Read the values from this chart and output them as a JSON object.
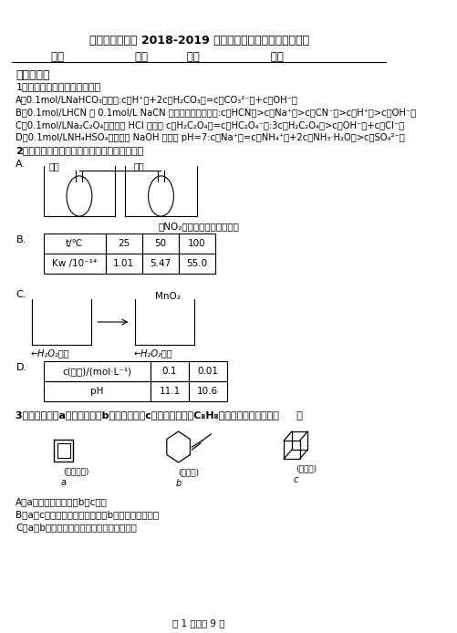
{
  "title": "吉州区第二中学 2018-2019 学年上学期高二期中化学模拟题",
  "header_line": "班级____________  座号______  姓名____________  分数____________",
  "section1": "一、选择题",
  "q1_stem": "1．常温下，下列说法正确的是",
  "q1_A": "A．0.1mol/LNaHCO₃溶液中:c（H⁺）+2c（H₂CO₃）=c（CO₃²⁻）+c（OH⁻）",
  "q1_B": "B．0.1mol/LHCN 和 0.1mol/L NaCN 的等体积混合溶液中:c（HCN）>c（Na⁺）>c（CN⁻）>c（H⁺）>c（OH⁻）",
  "q1_C": "C．0.1mol/LNa₂C₂O₄溶液滴加 HCl 溶液至 c（H₂C₂O₄）=c（HC₂O₄⁻）:3c（H₂C₂O₄）>c（OH⁻）+c（Cl⁻）",
  "q1_D": "D．0.1mol/LNH₄HSO₄溶液滴加 NaOH 溶液至 pH=7:c（Na⁺）=c（NH₄⁺）+2c（NH₃·H₂O）>c（SO₄²⁻）",
  "q2_stem": "2．下列实验事实不能用平衡移动原理解释的是",
  "q3_stem": "3．四元轴烯（a）、苯乙烯（b）、立方烷（c）的分子式均为C₈H₈，下列说法正确的是（     ）",
  "q3_A": "A．a的同分异构体只有b和c两种",
  "q3_B": "B．a、c的二氯代物均只有三种，b的一氯代物有五种",
  "q3_C": "C．a、b分子中的所有原子一定处于同一平面",
  "table_B_headers": [
    "t/℃",
    "25",
    "50",
    "100"
  ],
  "table_B_row": [
    "Kw /10⁻¹⁴",
    "1.01",
    "5.47",
    "55.0"
  ],
  "table_D_col1": [
    "c(氨水)/(mol·L⁻¹)",
    "pH"
  ],
  "table_D_col2": [
    "0.1",
    "11.1"
  ],
  "table_D_col3": [
    "0.01",
    "10.6"
  ],
  "footer": "第 1 页，共 9 页",
  "bg_color": "#ffffff",
  "text_color": "#000000"
}
